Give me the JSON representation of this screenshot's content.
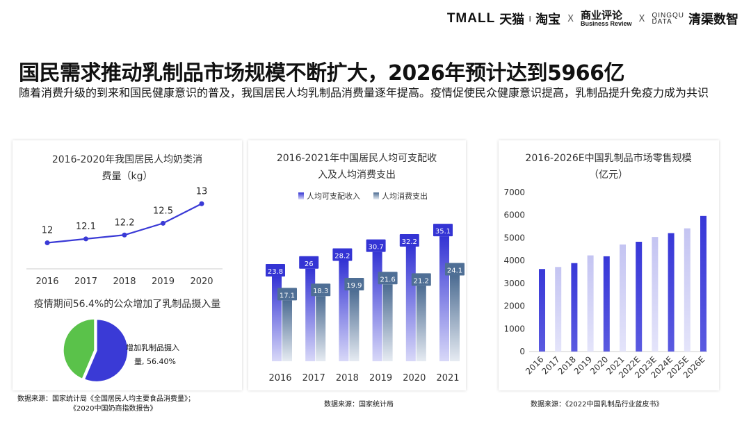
{
  "header": {
    "logo_tmall": "TMALL",
    "logo_tmall_cn": "天猫",
    "logo_taobao": "淘宝",
    "separator_x": "X",
    "logo_br_cn": "商业评论",
    "logo_br_en": "Business Review",
    "logo_qd_top": "QINGQU",
    "logo_qd_bottom": "DATA",
    "logo_qd_cn": "清渠数智"
  },
  "title": "国民需求推动乳制品市场规模不断扩大，2026年预计达到5966亿",
  "subtitle": "随着消费升级的到来和国民健康意识的普及，我国居民人均乳制品消费量逐年提高。疫情促使民众健康意识提高，乳制品提升免疫力成为共识",
  "sources": {
    "left_line1": "数据来源：国家统计局《全国居民人均主要食品消费量》；",
    "left_line2": "《2020中国奶商指数报告》",
    "middle": "数据来源：国家统计局",
    "right": "数据来源：《2022中国乳制品行业蓝皮书》"
  },
  "colors": {
    "blue": "#3a3ad6",
    "blue_light": "#b8b8f0",
    "slate": "#4f6f95",
    "green": "#5ac24a",
    "axis": "#cccccc"
  },
  "chart_data": [
    {
      "type": "line",
      "title": "2016-2020年我国居民人均奶类消费量（kg）",
      "title_line1": "2016-2020年我国居民人均奶类消",
      "title_line2": "费量（kg）",
      "x": [
        "2016",
        "2017",
        "2018",
        "2019",
        "2020"
      ],
      "values": [
        12,
        12.1,
        12.2,
        12.5,
        13
      ],
      "labels": [
        "12",
        "12.1",
        "12.2",
        "12.5",
        "13"
      ],
      "ylim": [
        11.6,
        13.2
      ]
    },
    {
      "type": "pie",
      "title": "疫情期间56.4%的公众增加了乳制品摄入量",
      "slices": [
        {
          "label": "增加乳制品摄入量",
          "value": 56.4
        },
        {
          "label": "",
          "value": 43.6
        }
      ],
      "annotation_line1": "增加乳制品摄入",
      "annotation_line2": "量, 56.40%"
    },
    {
      "type": "bar",
      "title": "2016-2021年中国居民人均可支配收入及人均消费支出",
      "title_line1": "2016-2021年中国居民人均可支配收",
      "title_line2": "入及人均消费支出",
      "categories": [
        "2016",
        "2017",
        "2018",
        "2019",
        "2020",
        "2021"
      ],
      "series": [
        {
          "name": "人均可支配收入",
          "values": [
            23.8,
            26,
            28.2,
            30.7,
            32.2,
            35.1
          ]
        },
        {
          "name": "人均消费支出",
          "values": [
            17.1,
            18.3,
            19.9,
            21.6,
            21.2,
            24.1
          ]
        }
      ],
      "value_labels": [
        [
          "23.8",
          "26",
          "28.2",
          "30.7",
          "32.2",
          "35.1"
        ],
        [
          "17.1",
          "18.3",
          "19.9",
          "21.6",
          "21.2",
          "24.1"
        ]
      ],
      "legend_position": "top",
      "ylim": [
        0,
        40
      ]
    },
    {
      "type": "bar",
      "title": "2016-2026E中国乳制品市场零售规模（亿元）",
      "title_line1": "2016-2026E中国乳制品市场零售规模",
      "title_line2": "（亿元）",
      "categories": [
        "2016",
        "2017",
        "2018",
        "2019",
        "2020",
        "2021",
        "2022E",
        "2023E",
        "2024E",
        "2025E",
        "2026E"
      ],
      "values": [
        3630,
        3720,
        3890,
        4230,
        4190,
        4710,
        4830,
        5040,
        5210,
        5420,
        5966
      ],
      "yticks": [
        "0",
        "1000",
        "2000",
        "3000",
        "4000",
        "5000",
        "6000",
        "7000"
      ],
      "ylim": [
        0,
        7000
      ]
    }
  ]
}
